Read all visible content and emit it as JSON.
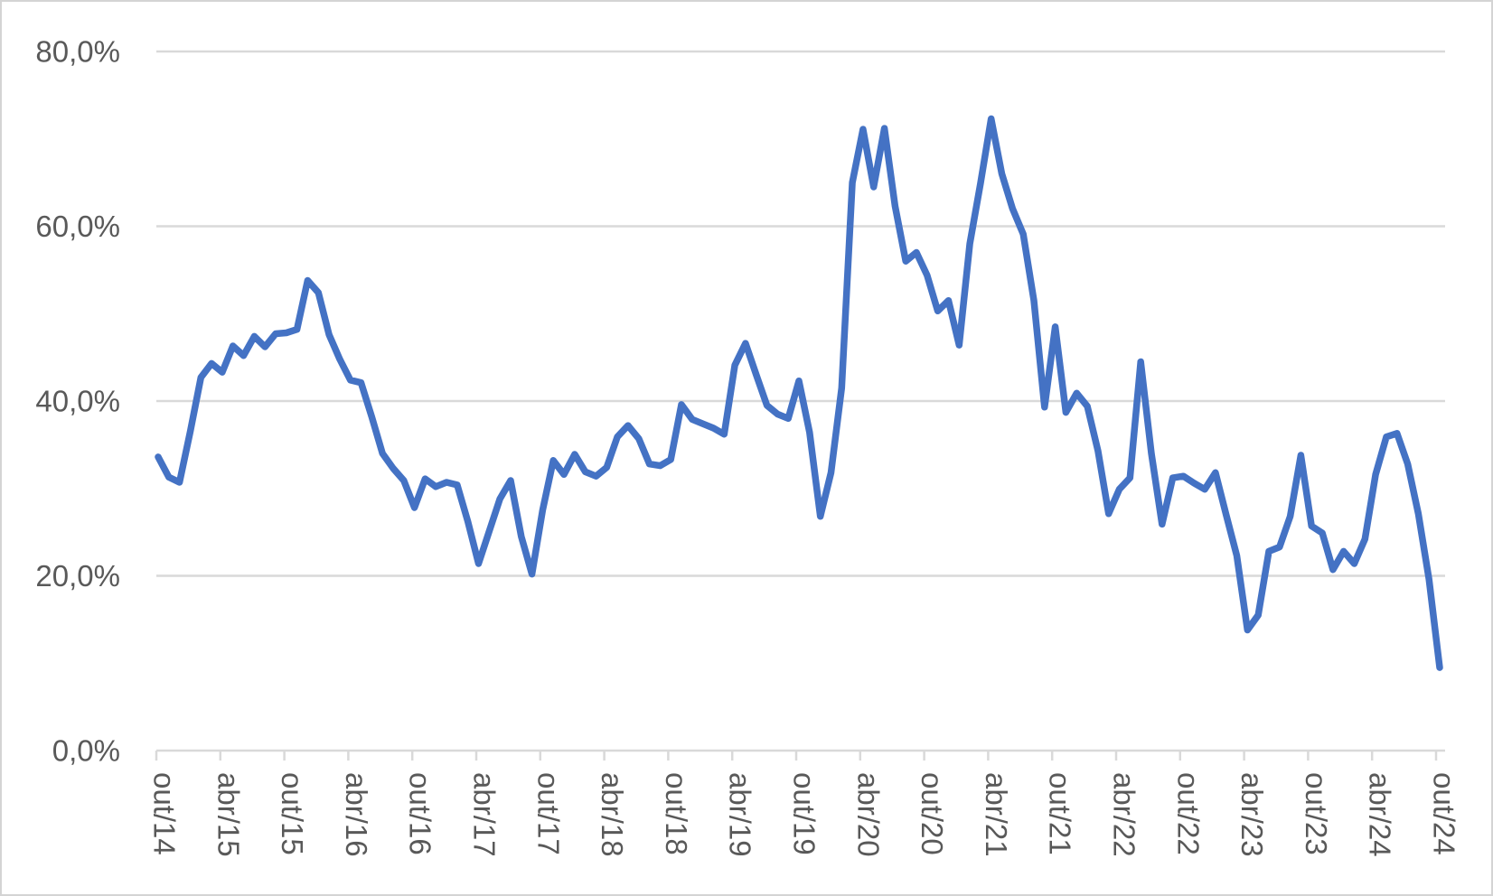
{
  "chart_data": {
    "type": "line",
    "title": "",
    "frequency": "monthly",
    "x_first_label": "out/14",
    "x_last_label": "out/24",
    "x_tick_labels": [
      "out/14",
      "abr/15",
      "out/15",
      "abr/16",
      "out/16",
      "abr/17",
      "out/17",
      "abr/18",
      "out/18",
      "abr/19",
      "out/19",
      "abr/20",
      "out/20",
      "abr/21",
      "out/21",
      "abr/22",
      "out/22",
      "abr/23",
      "out/23",
      "abr/24",
      "out/24"
    ],
    "y_tick_labels": [
      "0,0%",
      "20,0%",
      "40,0%",
      "60,0%",
      "80,0%"
    ],
    "y_tick_values": [
      0,
      20,
      40,
      60,
      80
    ],
    "ylim": [
      0,
      80
    ],
    "grid": true,
    "legend": false,
    "colors": {
      "line": "#4472C4",
      "gridline": "#D9D9D9",
      "axis": "#D9D9D9",
      "label": "#595959"
    },
    "series": [
      {
        "name": "",
        "color": "#4472C4",
        "values": [
          33.6,
          31.3,
          30.7,
          36.5,
          42.7,
          44.3,
          43.3,
          46.3,
          45.2,
          47.4,
          46.2,
          47.7,
          47.8,
          48.2,
          53.8,
          52.4,
          47.6,
          44.8,
          42.4,
          42.1,
          38.2,
          34.0,
          32.3,
          30.9,
          27.8,
          31.1,
          30.2,
          30.7,
          30.4,
          26.2,
          21.4,
          25.1,
          28.8,
          30.9,
          24.5,
          20.2,
          27.5,
          33.2,
          31.6,
          33.9,
          31.9,
          31.4,
          32.4,
          35.9,
          37.2,
          35.7,
          32.8,
          32.6,
          33.3,
          39.6,
          37.9,
          37.4,
          36.9,
          36.2,
          44.1,
          46.6,
          43.0,
          39.5,
          38.5,
          38.0,
          42.3,
          36.4,
          26.8,
          31.8,
          41.5,
          65.0,
          71.1,
          64.5,
          71.2,
          62.3,
          56.0,
          57.0,
          54.4,
          50.3,
          51.5,
          46.4,
          58.0,
          64.9,
          72.3,
          66.0,
          62.0,
          59.1,
          51.5,
          39.3,
          48.5,
          38.7,
          40.9,
          39.4,
          34.3,
          27.1,
          29.9,
          31.2,
          44.5,
          34.0,
          25.9,
          31.2,
          31.4,
          30.6,
          29.9,
          31.8,
          27.0,
          22.3,
          13.8,
          15.5,
          22.8,
          23.3,
          26.8,
          33.8,
          25.7,
          24.9,
          20.7,
          22.8,
          21.4,
          24.2,
          31.6,
          35.9,
          36.3,
          32.8,
          27.1,
          19.6,
          9.5
        ]
      }
    ]
  }
}
